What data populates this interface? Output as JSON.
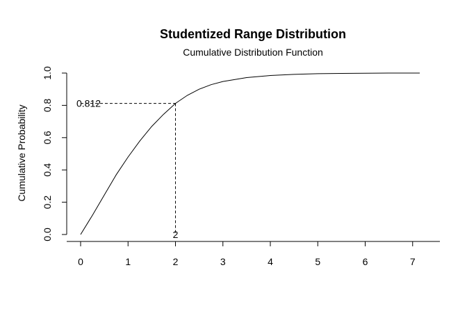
{
  "chart_data": {
    "type": "line",
    "title": "Studentized Range Distribution",
    "subtitle": "Cumulative Distribution Function",
    "xlabel": "",
    "ylabel": "Cumulative Probability",
    "xlim": [
      0,
      7.15
    ],
    "ylim": [
      0,
      1
    ],
    "x_ticks": [
      "0",
      "1",
      "2",
      "3",
      "4",
      "5",
      "6",
      "7"
    ],
    "y_ticks": [
      "0.0",
      "0.2",
      "0.4",
      "0.6",
      "0.8",
      "1.0"
    ],
    "grid": false,
    "legend": "none",
    "line_color": "#000000",
    "series": [
      {
        "x": [
          0,
          0.25,
          0.5,
          0.75,
          1.0,
          1.25,
          1.5,
          1.75,
          2.0,
          2.25,
          2.5,
          2.75,
          3.0,
          3.5,
          4.0,
          4.5,
          5.0,
          5.5,
          6.0,
          6.5,
          7.15
        ],
        "y": [
          0,
          0.12,
          0.245,
          0.37,
          0.48,
          0.58,
          0.67,
          0.745,
          0.812,
          0.862,
          0.9,
          0.928,
          0.948,
          0.972,
          0.985,
          0.992,
          0.996,
          0.998,
          0.999,
          1.0,
          1.0
        ]
      }
    ],
    "annotations": [
      {
        "x": 2,
        "y": 0.812,
        "x_label": "2",
        "y_label": "0.812",
        "style": "dashed"
      }
    ]
  }
}
